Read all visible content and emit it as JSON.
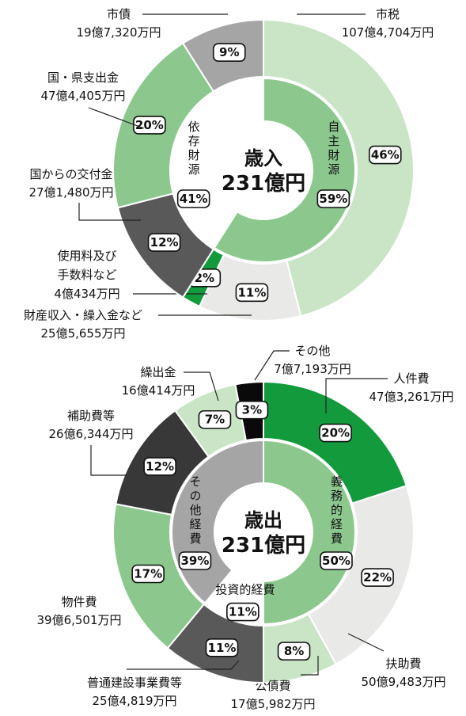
{
  "chart_data": [
    {
      "type": "donut",
      "title": "歳入",
      "subtitle": "231億円",
      "categories": [
        "市税",
        "財産収入・繰入金など",
        [
          "使用料及び",
          "手数料など"
        ],
        "国からの交付金",
        "国・県支出金",
        "市債"
      ],
      "amounts": [
        "107億4,704万円",
        "25億5,655万円",
        "4億434万円",
        "27億1,480万円",
        "47億4,405万円",
        "19億7,320万円"
      ],
      "values": [
        46,
        11,
        2,
        12,
        20,
        9
      ],
      "value_labels": [
        "46%",
        "11%",
        "2%",
        "12%",
        "20%",
        "9%"
      ],
      "colors": [
        "#c9e5c6",
        "#e9eae8",
        "#129a3c",
        "#595959",
        "#8cc88e",
        "#a5a5a5"
      ],
      "inner": {
        "categories": [
          "自主財源",
          "依存財源"
        ],
        "values": [
          59,
          41
        ],
        "value_labels": [
          "59%",
          "41%"
        ],
        "colors": [
          "#8cc88e",
          "#ffffff"
        ]
      }
    },
    {
      "type": "donut",
      "title": "歳出",
      "subtitle": "231億円",
      "categories": [
        "人件費",
        "扶助費",
        "公債費",
        "普通建設事業費等",
        "物件費",
        "補助費等",
        "繰出金",
        "その他"
      ],
      "amounts": [
        "47億3,261万円",
        "50億9,483万円",
        "17億5,982万円",
        "25億4,819万円",
        "39億6,501万円",
        "26億6,344万円",
        "16億414万円",
        "7億7,193万円"
      ],
      "values": [
        20,
        22,
        8,
        11,
        17,
        12,
        7,
        3
      ],
      "value_labels": [
        "20%",
        "22%",
        "8%",
        "11%",
        "17%",
        "12%",
        "7%",
        "3%"
      ],
      "colors": [
        "#129a3c",
        "#e9eae8",
        "#c9e5c6",
        "#595959",
        "#8cc88e",
        "#383838",
        "#c9e5c6",
        "#0a0a0a"
      ],
      "inner": {
        "categories": [
          "義務的経費",
          "投資的経費",
          "その他経費"
        ],
        "values": [
          50,
          11,
          39
        ],
        "value_labels": [
          "50%",
          "11%",
          "39%"
        ],
        "colors": [
          "#8cc88e",
          "#ffffff",
          "#a5a5a5"
        ]
      }
    }
  ]
}
